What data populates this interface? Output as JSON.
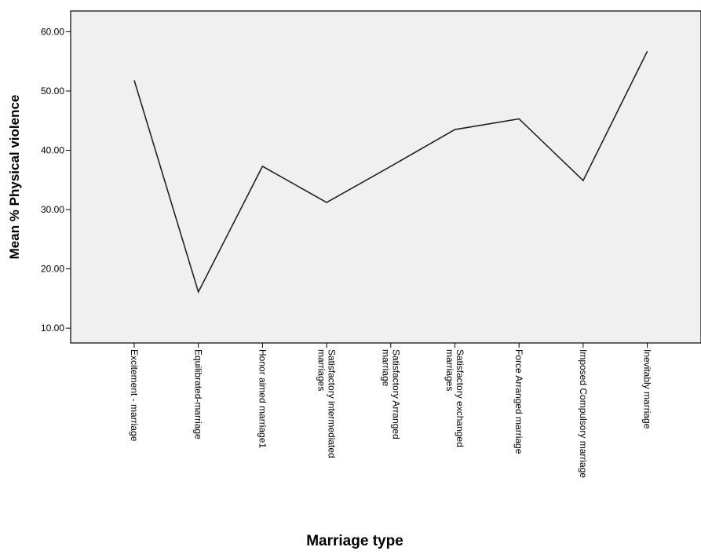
{
  "chart_data": {
    "type": "line",
    "title": "",
    "xlabel": "Marriage type",
    "ylabel": "Mean % Physical violence",
    "ylim": [
      7.5,
      63.5
    ],
    "yticks": [
      "10.00",
      "20.00",
      "30.00",
      "40.00",
      "50.00",
      "60.00"
    ],
    "ytick_values": [
      10,
      20,
      30,
      40,
      50,
      60
    ],
    "categories": [
      [
        "Excitement - marriage"
      ],
      [
        "Equilibrated-marriage"
      ],
      [
        "Honor aimed marriage1"
      ],
      [
        "Satisfactory intermediated",
        "marriages"
      ],
      [
        "Satisfactory Arranged",
        "marriage"
      ],
      [
        "Satisfactory exchanged",
        "marriages"
      ],
      [
        "Force Arranged marriage"
      ],
      [
        "Imposed Compulsory marriage"
      ],
      [
        "Inevitably marriage"
      ]
    ],
    "values": [
      51.8,
      16.1,
      37.3,
      31.2,
      37.3,
      43.5,
      45.3,
      34.9,
      56.7
    ],
    "grid": false,
    "legend": "none",
    "colors": {
      "background": "#f0f0f0",
      "line": "#222222",
      "frame": "#000000"
    }
  }
}
